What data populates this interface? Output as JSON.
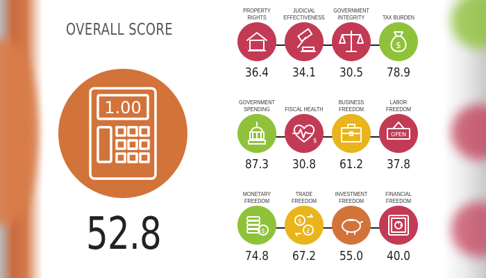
{
  "overall": {
    "title": "OVERALL SCORE",
    "score": "52.8",
    "icon": "calculator-icon",
    "display": "1.00",
    "color": "#d2733a"
  },
  "colors": {
    "red": "#c33a55",
    "green": "#8fc23a",
    "yellow": "#e9b41c",
    "orange": "#d2733a"
  },
  "rows": [
    [
      {
        "label": "PROPERTY RIGHTS",
        "value": "36.4",
        "icon": "house-icon",
        "color": "#c33a55"
      },
      {
        "label": "JUDICIAL EFFECTIVENESS",
        "value": "34.1",
        "icon": "gavel-icon",
        "color": "#c33a55"
      },
      {
        "label": "GOVERNMENT INTEGRITY",
        "value": "30.5",
        "icon": "scales-icon",
        "color": "#c33a55"
      },
      {
        "label": "TAX BURDEN",
        "value": "78.9",
        "icon": "money-bag-icon",
        "color": "#8fc23a"
      }
    ],
    [
      {
        "label": "GOVERNMENT SPENDING",
        "value": "87.3",
        "icon": "capitol-icon",
        "color": "#8fc23a"
      },
      {
        "label": "FISCAL HEALTH",
        "value": "30.8",
        "icon": "heartbeat-icon",
        "color": "#c33a55"
      },
      {
        "label": "BUSINESS FREEDOM",
        "value": "61.2",
        "icon": "briefcase-icon",
        "color": "#e9b41c"
      },
      {
        "label": "LABOR FREEDOM",
        "value": "37.8",
        "icon": "open-sign-icon",
        "color": "#c33a55",
        "sign": "OPEN"
      }
    ],
    [
      {
        "label": "MONETARY FREEDOM",
        "value": "74.8",
        "icon": "coins-icon",
        "color": "#8fc23a"
      },
      {
        "label": "TRADE FREEDOM",
        "value": "67.2",
        "icon": "currency-exchange-icon",
        "color": "#e9b41c"
      },
      {
        "label": "INVESTMENT FREEDOM",
        "value": "55.0",
        "icon": "piggy-bank-icon",
        "color": "#d2733a"
      },
      {
        "label": "FINANCIAL FREEDOM",
        "value": "40.0",
        "icon": "safe-icon",
        "color": "#c33a55"
      }
    ]
  ]
}
